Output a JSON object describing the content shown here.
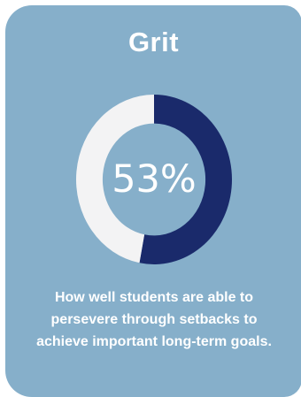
{
  "card": {
    "title": "Grit",
    "description": "How well students are able to persevere through setbacks to achieve important long-term goals."
  },
  "chart_data": {
    "type": "pie",
    "donut": true,
    "title": "Grit",
    "center_label": "53%",
    "values": [
      53,
      47
    ],
    "colors": [
      "#1a2a6b",
      "#f3f3f4"
    ]
  },
  "colors": {
    "card_background": "#86afca",
    "filled_segment": "#1a2a6b",
    "remaining_segment": "#f3f3f4",
    "text": "#ffffff"
  }
}
